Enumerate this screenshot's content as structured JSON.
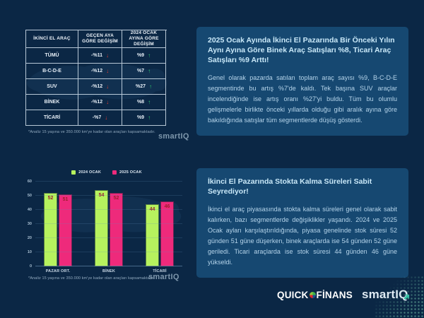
{
  "colors": {
    "page_bg": "#0b2745",
    "panel_bg": "#164871",
    "heading": "#c9e8f8",
    "body_text": "#b5d4ea",
    "arrow_down_red": "#e23b30",
    "arrow_up_green": "#2dc76d",
    "bar_green_2024": "#b6f25e",
    "bar_pink_2025": "#ee2a7b",
    "bar_value_label": "#9b1f2e",
    "smartiq_teal": "#2fbfa3"
  },
  "top_left": {
    "table": {
      "headers": [
        "İKİNCİ EL ARAÇ",
        "GEÇEN AYA GÖRE DEĞİŞİM",
        "2024 OCAK AYINA GÖRE DEĞİŞİM"
      ],
      "rows": [
        {
          "label": "TÜMÜ",
          "change_mom": "-%11",
          "mom_trend": "down",
          "change_yoy": "%9",
          "yoy_trend": "up"
        },
        {
          "label": "B-C-D-E",
          "change_mom": "-%12",
          "mom_trend": "down",
          "change_yoy": "%7",
          "yoy_trend": "up"
        },
        {
          "label": "SUV",
          "change_mom": "-%12",
          "mom_trend": "down",
          "change_yoy": "%27",
          "yoy_trend": "up"
        },
        {
          "label": "BİNEK",
          "change_mom": "-%12",
          "mom_trend": "down",
          "change_yoy": "%8",
          "yoy_trend": "up"
        },
        {
          "label": "TİCARİ",
          "change_mom": "-%7",
          "mom_trend": "down",
          "change_yoy": "%9",
          "yoy_trend": "up"
        }
      ]
    },
    "footnote": "*Analiz 15 yaşına ve 350.000 km'ye kadar olan araçları kapsamaktadır.",
    "logo": "smartIQ"
  },
  "top_right": {
    "title": "2025 Ocak Ayında İkinci El Pazarında Bir Önceki Yılın Aynı Ayına Göre Binek Araç Satışları %8, Ticari Araç Satışları %9 Arttı!",
    "body": "Genel olarak pazarda satılan toplam araç sayısı %9, B-C-D-E segmentinde bu artış %7'de kaldı. Tek başına SUV araçlar incelendiğinde ise artış oranı %27'yi buldu. Tüm bu olumlu gelişmelerle birlikte önceki yıllarda olduğu gibi aralık ayına göre bakıldığında satışlar tüm segmentlerde düşüş gösterdi."
  },
  "chart_data": {
    "type": "bar",
    "categories": [
      "PAZAR ORT.",
      "BİNEK",
      "TİCARİ"
    ],
    "series": [
      {
        "name": "2024 OCAK",
        "color": "#b6f25e",
        "values": [
          52,
          54,
          44
        ]
      },
      {
        "name": "2025 OCAK",
        "color": "#ee2a7b",
        "values": [
          51,
          52,
          46
        ]
      }
    ],
    "title": "",
    "xlabel": "",
    "ylabel": "",
    "ylim": [
      0,
      60
    ],
    "yticks": [
      0,
      10,
      20,
      30,
      40,
      50,
      60
    ],
    "grid": true,
    "legend_position": "top"
  },
  "bottom_left": {
    "footnote": "*Analiz 15 yaşına ve 350.000 km'ye kadar olan araçları kapsamaktadır",
    "logo": "smartIQ"
  },
  "bottom_right": {
    "title": "İkinci El Pazarında Stokta Kalma Süreleri Sabit Seyrediyor!",
    "body": "İkinci el araç piyasasında stokta kalma süreleri genel olarak sabit kalırken, bazı segmentlerde değişiklikler yaşandı. 2024 ve 2025 Ocak ayları karşılaştırıldığında, piyasa genelinde stok süresi 52 günden 51 güne düşerken, binek araçlarda ise 54 günden 52 güne geriledi. Ticari araçlarda ise stok süresi 44 günden 46 güne yükseldi."
  },
  "footer": {
    "quick": "QUICK",
    "finans": "FİNANS",
    "smartiq": "smartIQ"
  }
}
